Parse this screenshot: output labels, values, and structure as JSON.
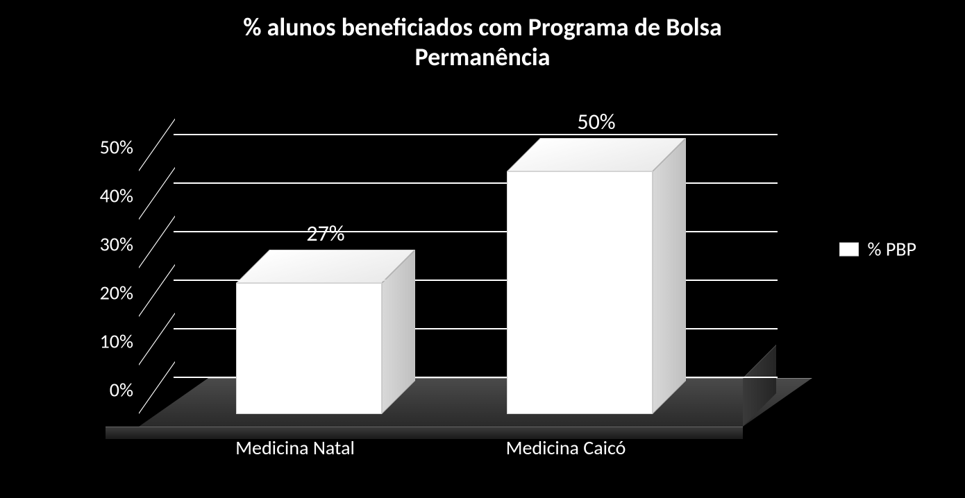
{
  "title_line1": "% alunos beneficiados com Programa de Bolsa",
  "title_line2": "Permanência",
  "title_fontsize": 36,
  "chart": {
    "type": "bar-3d",
    "background_color": "#000000",
    "bar_color": "#ffffff",
    "grid_color": "#ffffff",
    "text_color": "#ffffff",
    "ylim_max": 50,
    "ytick_step": 10,
    "yticks": [
      {
        "value": 0,
        "label": "0%"
      },
      {
        "value": 10,
        "label": "10%"
      },
      {
        "value": 20,
        "label": "20%"
      },
      {
        "value": 30,
        "label": "30%"
      },
      {
        "value": 40,
        "label": "40%"
      },
      {
        "value": 50,
        "label": "50%"
      }
    ],
    "axis_fontsize": 28,
    "data_label_fontsize": 32,
    "series": [
      {
        "category": "Medicina Natal",
        "value": 27,
        "data_label": "27%"
      },
      {
        "category": "Medicina Caicó",
        "value": 50,
        "data_label": "50%"
      }
    ],
    "legend_label": "% PBP",
    "legend_fontsize": 28
  }
}
